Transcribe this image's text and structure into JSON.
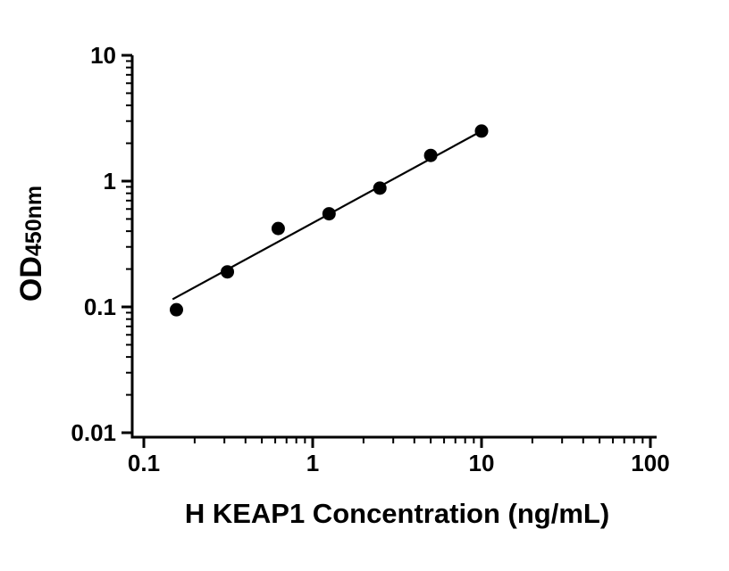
{
  "figure": {
    "background": "#ffffff",
    "ink": "#000000"
  },
  "chart_data": {
    "type": "scatter",
    "title": "",
    "xlabel": "H KEAP1 Concentration (ng/mL)",
    "ylabel": "OD450nm",
    "ylabel_main": "OD",
    "ylabel_sub": "450nm",
    "xscale": "log",
    "yscale": "log",
    "xlim": [
      0.1,
      100
    ],
    "ylim": [
      0.01,
      10
    ],
    "grid": false,
    "legend": false,
    "x_ticks": [
      "0.1",
      "1",
      "10",
      "100"
    ],
    "x_tick_values": [
      0.1,
      1,
      10,
      100
    ],
    "y_ticks": [
      "10",
      "1",
      "0.1",
      "0.01"
    ],
    "y_tick_values": [
      10,
      1,
      0.1,
      0.01
    ],
    "points": [
      {
        "x": 0.156,
        "y": 0.095
      },
      {
        "x": 0.3125,
        "y": 0.19
      },
      {
        "x": 0.625,
        "y": 0.42
      },
      {
        "x": 1.25,
        "y": 0.55
      },
      {
        "x": 2.5,
        "y": 0.88
      },
      {
        "x": 5,
        "y": 1.6
      },
      {
        "x": 10,
        "y": 2.5
      }
    ],
    "fit_line": {
      "x1": 0.148,
      "y1": 0.115,
      "x2": 10.0,
      "y2": 2.5
    }
  }
}
